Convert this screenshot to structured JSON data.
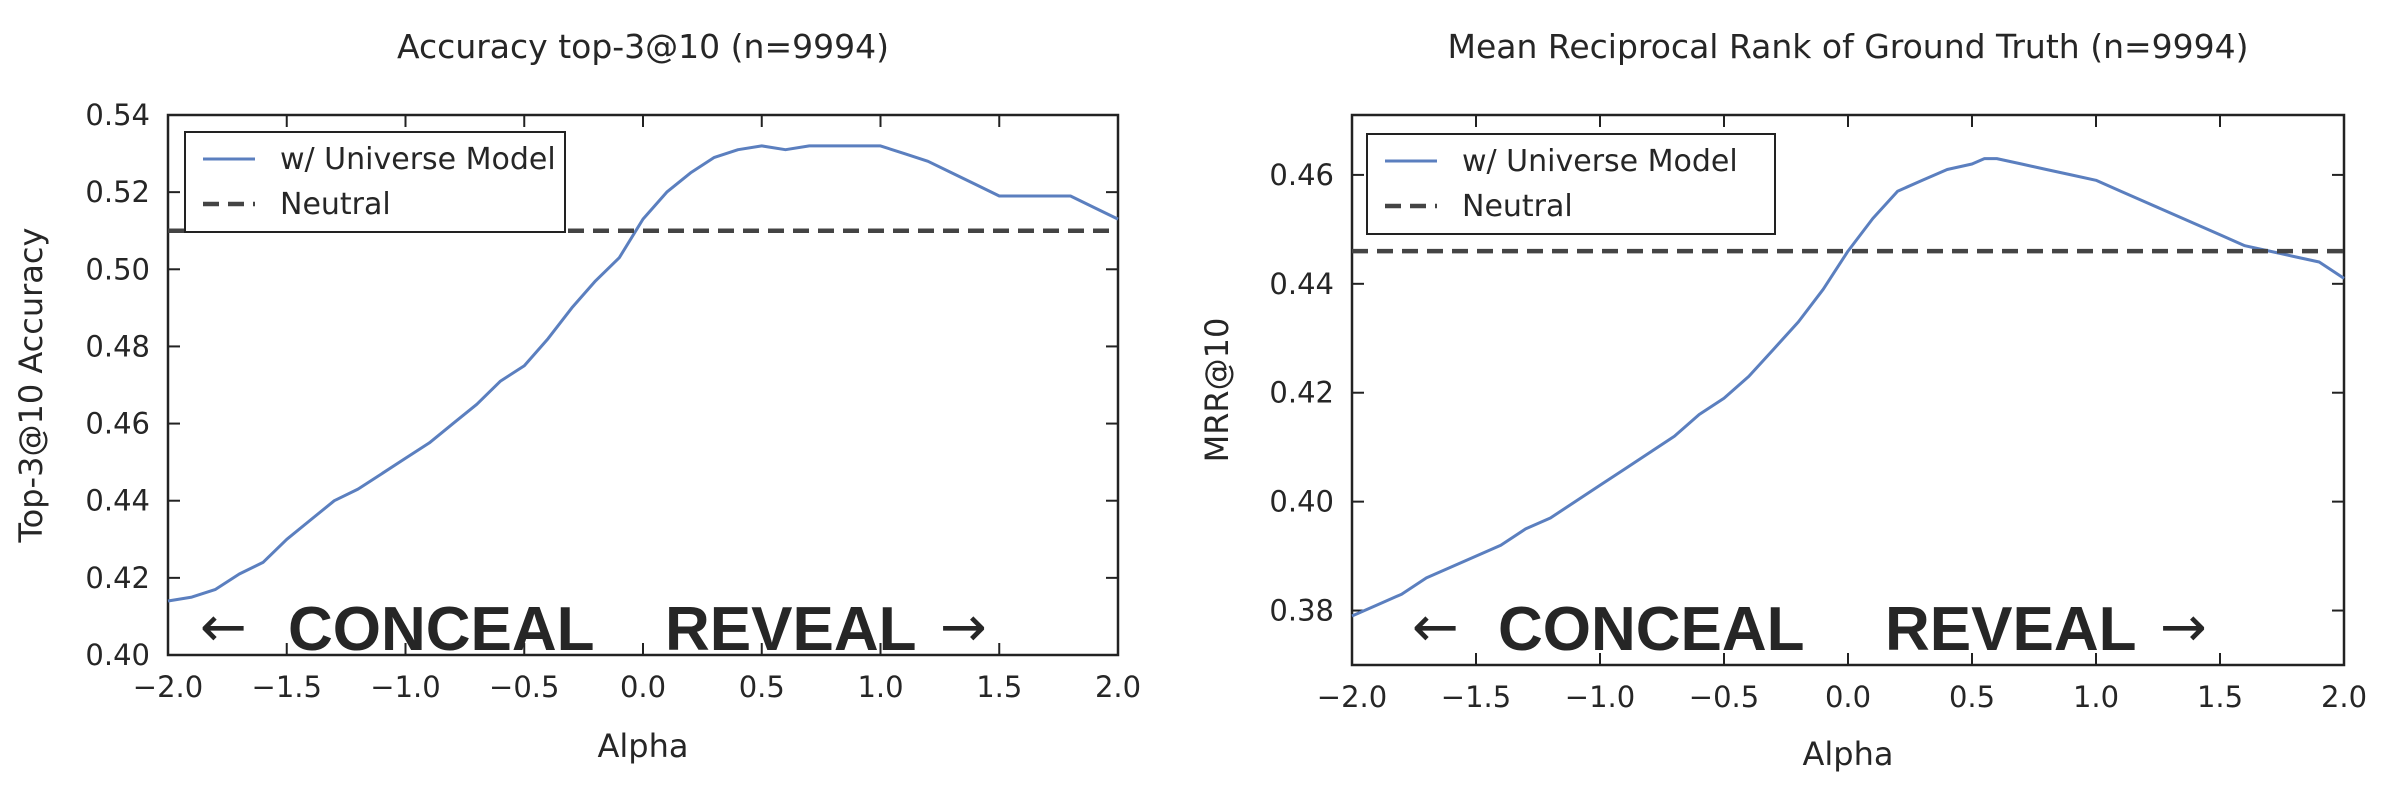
{
  "chart_data": [
    {
      "type": "line",
      "title": "Accuracy top-3@10 (n=9994)",
      "xlabel": "Alpha",
      "ylabel": "Top-3@10 Accuracy",
      "xlim": [
        -2.0,
        2.0
      ],
      "ylim": [
        0.4,
        0.54
      ],
      "xticks": [
        -2.0,
        -1.5,
        -1.0,
        -0.5,
        0.0,
        0.5,
        1.0,
        1.5,
        2.0
      ],
      "xtick_labels": [
        "−2.0",
        "−1.5",
        "−1.0",
        "−0.5",
        "0.0",
        "0.5",
        "1.0",
        "1.5",
        "2.0"
      ],
      "yticks": [
        0.4,
        0.42,
        0.44,
        0.46,
        0.48,
        0.5,
        0.52,
        0.54
      ],
      "ytick_labels": [
        "0.40",
        "0.42",
        "0.44",
        "0.46",
        "0.48",
        "0.50",
        "0.52",
        "0.54"
      ],
      "legend_position": "top-left",
      "grid": false,
      "series": [
        {
          "name": "w/ Universe Model",
          "style": "solid",
          "color": "#5b7fbf",
          "x": [
            -2.0,
            -1.9,
            -1.8,
            -1.7,
            -1.6,
            -1.5,
            -1.4,
            -1.3,
            -1.2,
            -1.1,
            -1.0,
            -0.9,
            -0.8,
            -0.7,
            -0.6,
            -0.5,
            -0.4,
            -0.3,
            -0.2,
            -0.1,
            0.0,
            0.1,
            0.2,
            0.3,
            0.4,
            0.5,
            0.6,
            0.7,
            0.8,
            0.9,
            1.0,
            1.1,
            1.2,
            1.3,
            1.4,
            1.5,
            1.6,
            1.7,
            1.8,
            1.9,
            2.0
          ],
          "y": [
            0.414,
            0.415,
            0.417,
            0.421,
            0.424,
            0.43,
            0.435,
            0.44,
            0.443,
            0.447,
            0.451,
            0.455,
            0.46,
            0.465,
            0.471,
            0.475,
            0.482,
            0.49,
            0.497,
            0.503,
            0.513,
            0.52,
            0.525,
            0.529,
            0.531,
            0.532,
            0.531,
            0.532,
            0.532,
            0.532,
            0.532,
            0.53,
            0.528,
            0.525,
            0.522,
            0.519,
            0.519,
            0.519,
            0.519,
            0.516,
            0.513
          ]
        },
        {
          "name": "Neutral",
          "style": "dashed",
          "color": "#444444",
          "x": [
            -2.0,
            2.0
          ],
          "y": [
            0.51,
            0.51
          ]
        }
      ],
      "annotations": [
        {
          "text": "CONCEAL",
          "arrow": "←",
          "color": "#c8422f"
        },
        {
          "text": "REVEAL",
          "arrow": "→",
          "color": "#5f9e44"
        }
      ]
    },
    {
      "type": "line",
      "title": "Mean Reciprocal Rank of Ground Truth (n=9994)",
      "xlabel": "Alpha",
      "ylabel": "MRR@10",
      "xlim": [
        -2.0,
        2.0
      ],
      "ylim": [
        0.37,
        0.471
      ],
      "xticks": [
        -2.0,
        -1.5,
        -1.0,
        -0.5,
        0.0,
        0.5,
        1.0,
        1.5,
        2.0
      ],
      "xtick_labels": [
        "−2.0",
        "−1.5",
        "−1.0",
        "−0.5",
        "0.0",
        "0.5",
        "1.0",
        "1.5",
        "2.0"
      ],
      "yticks": [
        0.38,
        0.4,
        0.42,
        0.44,
        0.46
      ],
      "ytick_labels": [
        "0.38",
        "0.40",
        "0.42",
        "0.44",
        "0.46"
      ],
      "legend_position": "top-left",
      "grid": false,
      "series": [
        {
          "name": "w/ Universe Model",
          "style": "solid",
          "color": "#5b7fbf",
          "x": [
            -2.0,
            -1.9,
            -1.8,
            -1.7,
            -1.6,
            -1.5,
            -1.4,
            -1.3,
            -1.2,
            -1.1,
            -1.0,
            -0.9,
            -0.8,
            -0.7,
            -0.6,
            -0.5,
            -0.4,
            -0.3,
            -0.2,
            -0.1,
            0.0,
            0.1,
            0.2,
            0.3,
            0.4,
            0.5,
            0.55,
            0.6,
            0.7,
            0.8,
            0.9,
            1.0,
            1.1,
            1.2,
            1.3,
            1.4,
            1.5,
            1.6,
            1.7,
            1.8,
            1.9,
            2.0
          ],
          "y": [
            0.379,
            0.381,
            0.383,
            0.386,
            0.388,
            0.39,
            0.392,
            0.395,
            0.397,
            0.4,
            0.403,
            0.406,
            0.409,
            0.412,
            0.416,
            0.419,
            0.423,
            0.428,
            0.433,
            0.439,
            0.446,
            0.452,
            0.457,
            0.459,
            0.461,
            0.462,
            0.463,
            0.463,
            0.462,
            0.461,
            0.46,
            0.459,
            0.457,
            0.455,
            0.453,
            0.451,
            0.449,
            0.447,
            0.446,
            0.445,
            0.444,
            0.441
          ]
        },
        {
          "name": "Neutral",
          "style": "dashed",
          "color": "#444444",
          "x": [
            -2.0,
            2.0
          ],
          "y": [
            0.446,
            0.446
          ]
        }
      ],
      "annotations": [
        {
          "text": "CONCEAL",
          "arrow": "←",
          "color": "#c8422f"
        },
        {
          "text": "REVEAL",
          "arrow": "→",
          "color": "#5f9e44"
        }
      ]
    }
  ]
}
